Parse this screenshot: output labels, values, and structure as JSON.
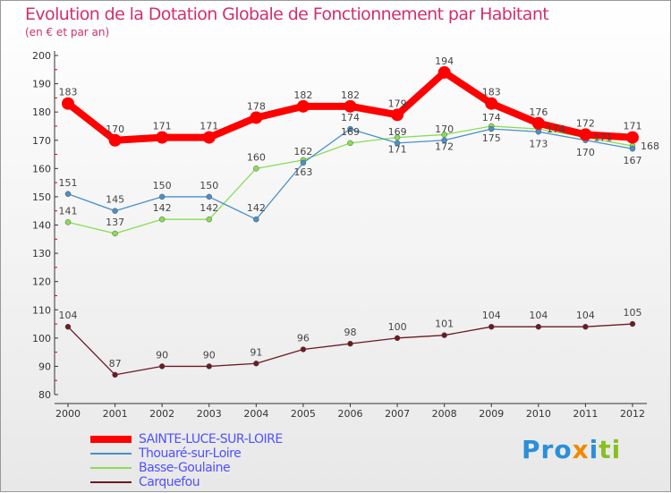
{
  "title": "Evolution de la Dotation Globale de Fonctionnement par Habitant",
  "subtitle": "(en € et par an)",
  "logo": "Proxiti",
  "chart_data": {
    "type": "line",
    "title": "Evolution de la Dotation Globale de Fonctionnement par Habitant",
    "subtitle": "(en € et par an)",
    "x": [
      2000,
      2001,
      2002,
      2003,
      2004,
      2005,
      2006,
      2007,
      2008,
      2009,
      2010,
      2011,
      2012
    ],
    "ylim": [
      80,
      200
    ],
    "yticks": [
      80,
      90,
      100,
      110,
      120,
      130,
      140,
      150,
      160,
      170,
      180,
      190,
      200
    ],
    "grid": false,
    "legend": "bottom-left",
    "series": [
      {
        "name": "SAINTE-LUCE-SUR-LOIRE",
        "color": "#ff0000",
        "values": [
          183,
          170,
          171,
          171,
          178,
          182,
          182,
          179,
          194,
          183,
          176,
          172,
          171
        ]
      },
      {
        "name": "Thouaré-sur-Loire",
        "color": "#4a90c8",
        "values": [
          151,
          145,
          150,
          150,
          142,
          162,
          174,
          169,
          170,
          174,
          173,
          170,
          167
        ]
      },
      {
        "name": "Basse-Goulaine",
        "color": "#88dd55",
        "values": [
          141,
          137,
          142,
          142,
          160,
          163,
          169,
          171,
          172,
          175,
          174,
          171,
          168
        ]
      },
      {
        "name": "Carquefou",
        "color": "#6b1a22",
        "values": [
          104,
          87,
          90,
          90,
          91,
          96,
          98,
          100,
          101,
          104,
          104,
          104,
          105
        ]
      }
    ]
  }
}
